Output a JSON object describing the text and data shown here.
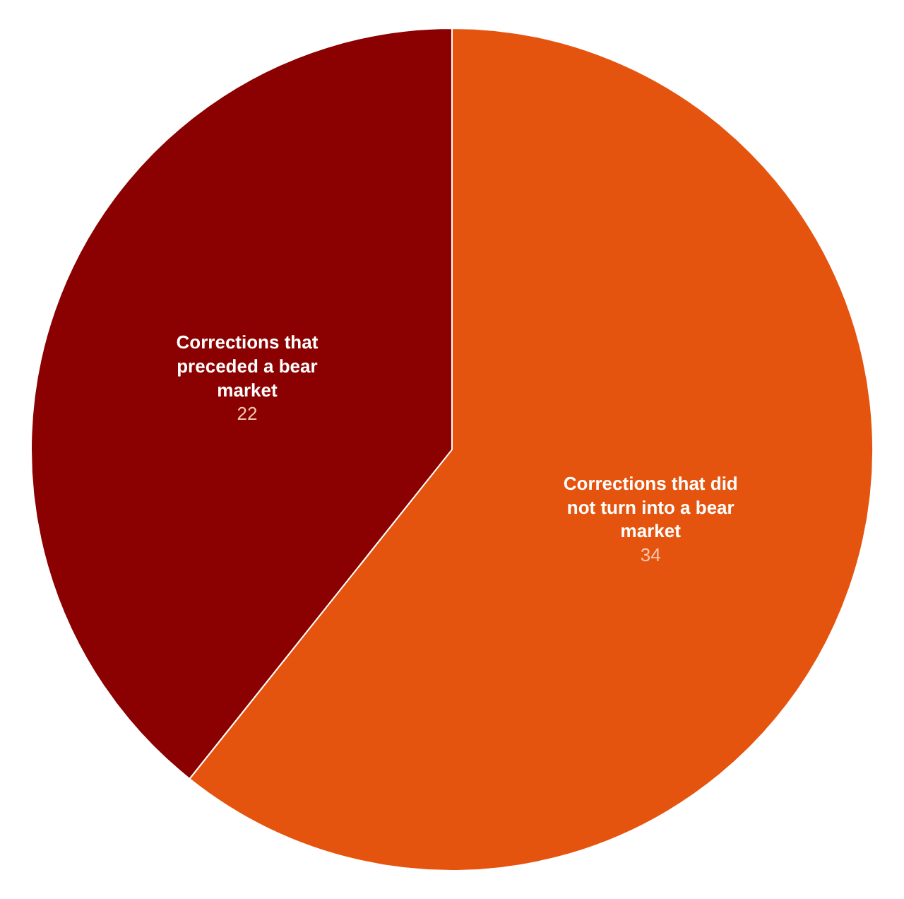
{
  "chart_data": {
    "type": "pie",
    "categories": [
      "Corrections that did not turn into a bear market",
      "Corrections that preceded a bear market"
    ],
    "values": [
      34,
      22
    ],
    "colors": [
      "#e5540f",
      "#8b0000"
    ],
    "data_labels": true,
    "legend": false
  }
}
